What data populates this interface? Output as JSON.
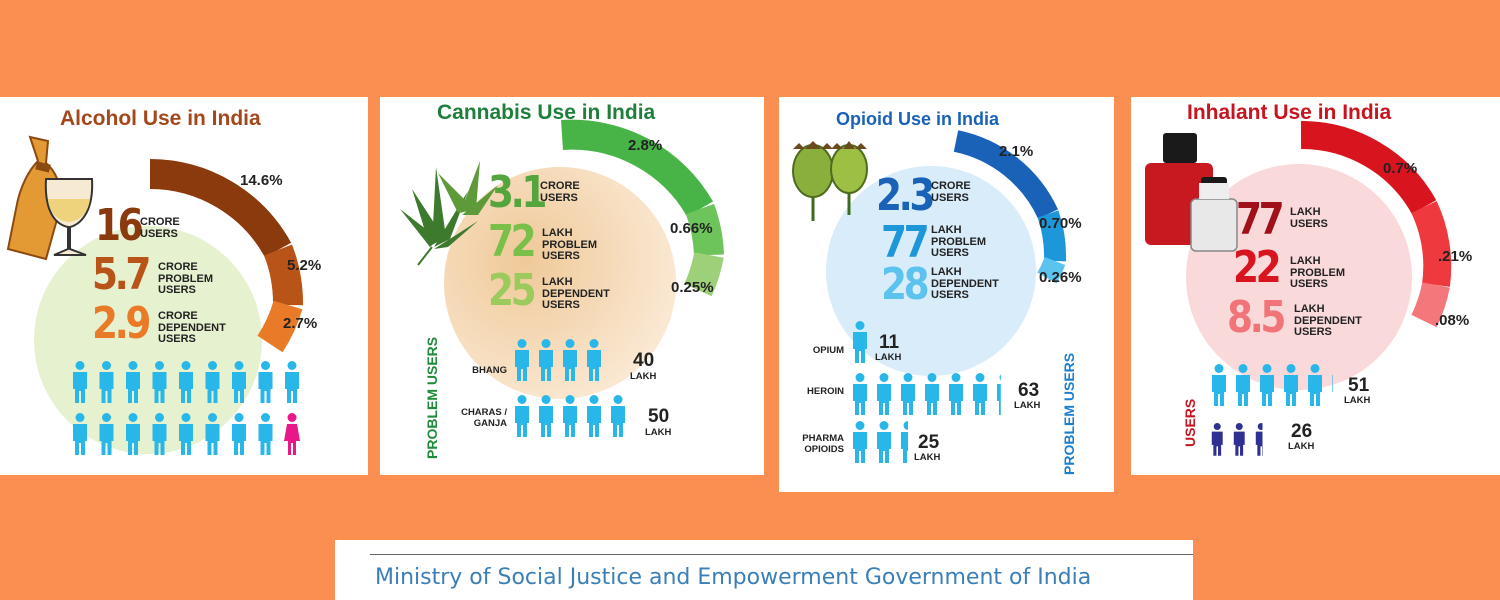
{
  "colors": {
    "background": "#FB8F52",
    "person": "#29B6E8",
    "female": "#E8178A",
    "inhalant_person": "#2E3192"
  },
  "footer": {
    "text": "Ministry of Social Justice and Empowerment Government of India"
  },
  "chart_data": [
    {
      "type": "radial-bar",
      "title": "Alcohol Use in India",
      "series": [
        {
          "value": 16,
          "unit": "CRORE",
          "label": "USERS",
          "percent": 14.6
        },
        {
          "value": 5.7,
          "unit": "CRORE",
          "label": "PROBLEM USERS",
          "percent": 5.2
        },
        {
          "value": 2.9,
          "unit": "CRORE",
          "label": "DEPENDENT USERS",
          "percent": 2.7
        }
      ],
      "percent_labels": [
        "14.6%",
        "5.2%",
        "2.7%"
      ],
      "big_numbers": [
        "16",
        "5.7",
        "2.9"
      ],
      "big_labels": [
        "CRORE\nUSERS",
        "CRORE\nPROBLEM\nUSERS",
        "CRORE\nDEPENDENT\nUSERS"
      ],
      "icons": {
        "rows": 2,
        "per_row": 9,
        "female_count": 1
      }
    },
    {
      "type": "radial-bar",
      "title": "Cannabis Use in India",
      "series": [
        {
          "value": 3.1,
          "unit": "CRORE",
          "label": "USERS",
          "percent": 2.8
        },
        {
          "value": 72,
          "unit": "LAKH",
          "label": "PROBLEM USERS",
          "percent": 0.66
        },
        {
          "value": 25,
          "unit": "LAKH",
          "label": "DEPENDENT USERS",
          "percent": 0.25
        }
      ],
      "percent_labels": [
        "2.8%",
        "0.66%",
        "0.25%"
      ],
      "big_numbers": [
        "3.1",
        "72",
        "25"
      ],
      "big_labels": [
        "CRORE\nUSERS",
        "LAKH\nPROBLEM\nUSERS",
        "LAKH\nDEPENDENT\nUSERS"
      ],
      "side_label": "PROBLEM USERS",
      "breakdown": [
        {
          "label": "BHANG",
          "value": 40,
          "unit": "LAKH"
        },
        {
          "label": "CHARAS /\nGANJA",
          "value": 50,
          "unit": "LAKH"
        }
      ]
    },
    {
      "type": "radial-bar",
      "title": "Opioid Use in India",
      "series": [
        {
          "value": 2.3,
          "unit": "CRORE",
          "label": "USERS",
          "percent": 2.1
        },
        {
          "value": 77,
          "unit": "LAKH",
          "label": "PROBLEM USERS",
          "percent": 0.7
        },
        {
          "value": 28,
          "unit": "LAKH",
          "label": "DEPENDENT USERS",
          "percent": 0.26
        }
      ],
      "percent_labels": [
        "2.1%",
        "0.70%",
        "0.26%"
      ],
      "big_numbers": [
        "2.3",
        "77",
        "28"
      ],
      "big_labels": [
        "CRORE\nUSERS",
        "LAKH\nPROBLEM\nUSERS",
        "LAKH\nDEPENDENT\nUSERS"
      ],
      "side_label": "PROBLEM USERS",
      "breakdown": [
        {
          "label": "OPIUM",
          "value": 11,
          "unit": "LAKH"
        },
        {
          "label": "HEROIN",
          "value": 63,
          "unit": "LAKH"
        },
        {
          "label": "PHARMA\nOPIOIDS",
          "value": 25,
          "unit": "LAKH"
        }
      ]
    },
    {
      "type": "radial-bar",
      "title": "Inhalant Use in India",
      "series": [
        {
          "value": 77,
          "unit": "LAKH",
          "label": "USERS",
          "percent": 0.7
        },
        {
          "value": 22,
          "unit": "LAKH",
          "label": "PROBLEM USERS",
          "percent": 0.21
        },
        {
          "value": 8.5,
          "unit": "LAKH",
          "label": "DEPENDENT USERS",
          "percent": 0.08
        }
      ],
      "percent_labels": [
        "0.7%",
        ".21%",
        ".08%"
      ],
      "big_numbers": [
        "77",
        "22",
        "8.5"
      ],
      "big_labels": [
        "LAKH\nUSERS",
        "LAKH\nPROBLEM\nUSERS",
        "LAKH\nDEPENDENT\nUSERS"
      ],
      "side_label": "USERS",
      "breakdown": [
        {
          "label": "",
          "value": 51,
          "unit": "LAKH",
          "group": "adults"
        },
        {
          "label": "",
          "value": 26,
          "unit": "LAKH",
          "group": "children"
        }
      ]
    }
  ]
}
